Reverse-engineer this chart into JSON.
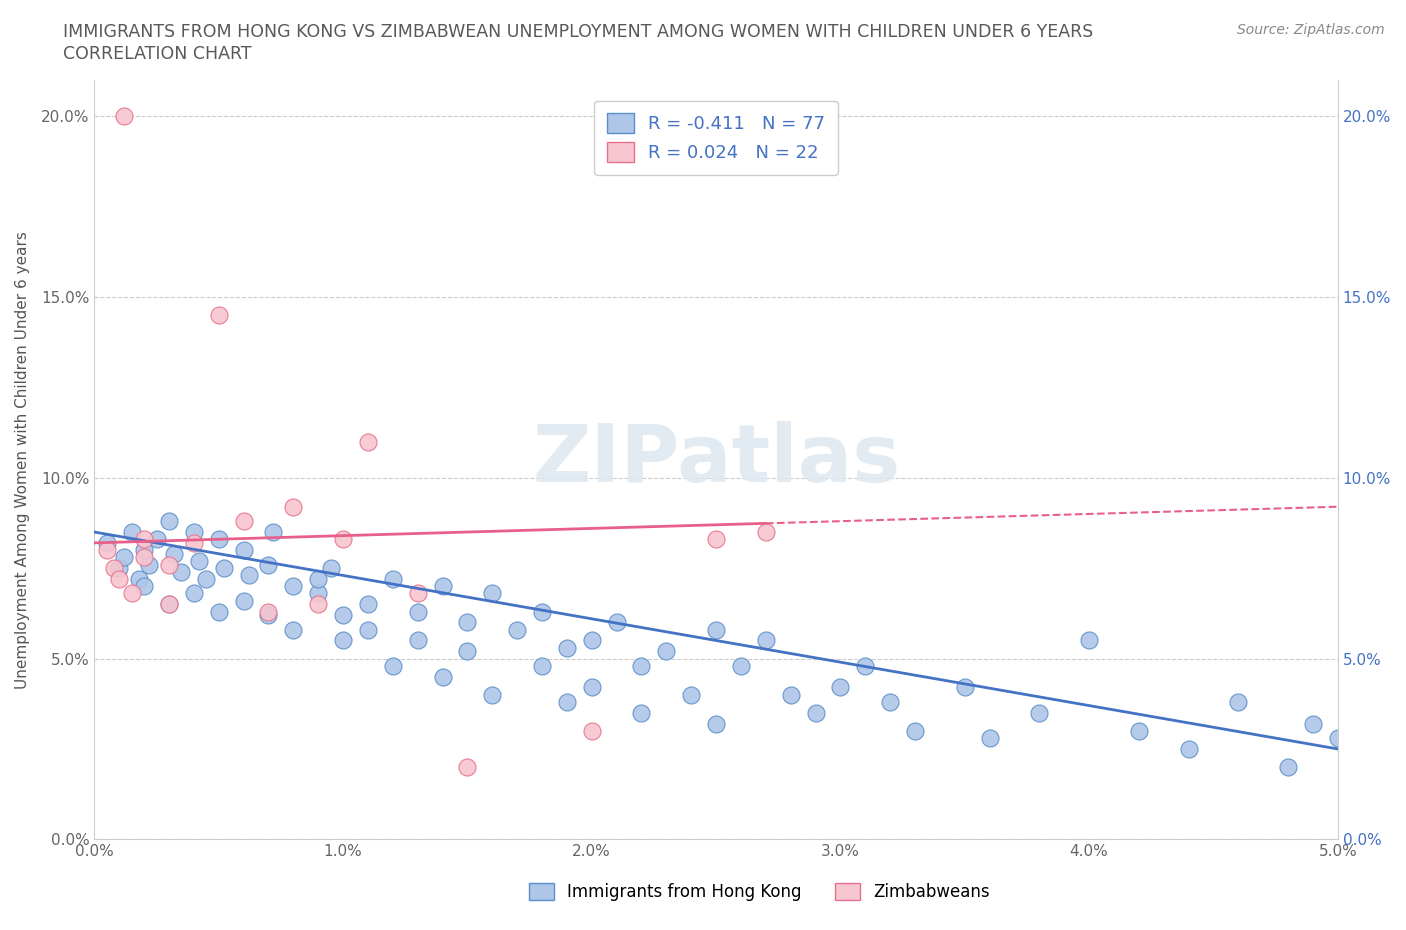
{
  "title1": "IMMIGRANTS FROM HONG KONG VS ZIMBABWEAN UNEMPLOYMENT AMONG WOMEN WITH CHILDREN UNDER 6 YEARS",
  "title2": "CORRELATION CHART",
  "source_text": "Source: ZipAtlas.com",
  "ylabel": "Unemployment Among Women with Children Under 6 years",
  "xlim": [
    0.0,
    0.05
  ],
  "ylim": [
    0.0,
    0.21
  ],
  "x_ticks": [
    0.0,
    0.01,
    0.02,
    0.03,
    0.04,
    0.05
  ],
  "x_tick_labels": [
    "0.0%",
    "1.0%",
    "2.0%",
    "3.0%",
    "4.0%",
    "5.0%"
  ],
  "y_ticks": [
    0.0,
    0.05,
    0.1,
    0.15,
    0.2
  ],
  "y_tick_labels": [
    "0.0%",
    "5.0%",
    "10.0%",
    "15.0%",
    "20.0%"
  ],
  "legend_r1": "R = -0.411   N = 77",
  "legend_r2": "R = 0.024   N = 22",
  "blue_color": "#aec6e8",
  "blue_edge": "#5b8fc9",
  "pink_color": "#f7c5d0",
  "pink_edge": "#e8708a",
  "line_blue": "#4472c4",
  "line_pink": "#e8608a",
  "text_blue": "#4472c4",
  "title_color": "#595959",
  "source_color": "#888888",
  "watermark": "ZIPatlas",
  "blue_scatter_x": [
    0.0005,
    0.001,
    0.0012,
    0.0015,
    0.0018,
    0.002,
    0.002,
    0.0022,
    0.0025,
    0.003,
    0.003,
    0.0032,
    0.0035,
    0.004,
    0.004,
    0.0042,
    0.0045,
    0.005,
    0.005,
    0.0052,
    0.006,
    0.006,
    0.0062,
    0.007,
    0.007,
    0.0072,
    0.008,
    0.008,
    0.009,
    0.009,
    0.0095,
    0.01,
    0.01,
    0.011,
    0.011,
    0.012,
    0.012,
    0.013,
    0.013,
    0.014,
    0.014,
    0.015,
    0.015,
    0.016,
    0.016,
    0.017,
    0.018,
    0.018,
    0.019,
    0.019,
    0.02,
    0.02,
    0.021,
    0.022,
    0.022,
    0.023,
    0.024,
    0.025,
    0.025,
    0.026,
    0.027,
    0.028,
    0.029,
    0.03,
    0.031,
    0.032,
    0.033,
    0.035,
    0.036,
    0.038,
    0.04,
    0.042,
    0.044,
    0.046,
    0.048,
    0.049,
    0.05
  ],
  "blue_scatter_y": [
    0.082,
    0.075,
    0.078,
    0.085,
    0.072,
    0.08,
    0.07,
    0.076,
    0.083,
    0.088,
    0.065,
    0.079,
    0.074,
    0.085,
    0.068,
    0.077,
    0.072,
    0.083,
    0.063,
    0.075,
    0.08,
    0.066,
    0.073,
    0.076,
    0.062,
    0.085,
    0.07,
    0.058,
    0.068,
    0.072,
    0.075,
    0.062,
    0.055,
    0.058,
    0.065,
    0.072,
    0.048,
    0.063,
    0.055,
    0.07,
    0.045,
    0.06,
    0.052,
    0.068,
    0.04,
    0.058,
    0.063,
    0.048,
    0.053,
    0.038,
    0.055,
    0.042,
    0.06,
    0.048,
    0.035,
    0.052,
    0.04,
    0.058,
    0.032,
    0.048,
    0.055,
    0.04,
    0.035,
    0.042,
    0.048,
    0.038,
    0.03,
    0.042,
    0.028,
    0.035,
    0.055,
    0.03,
    0.025,
    0.038,
    0.02,
    0.032,
    0.028
  ],
  "pink_scatter_x": [
    0.0005,
    0.0008,
    0.001,
    0.0012,
    0.0015,
    0.002,
    0.002,
    0.003,
    0.003,
    0.004,
    0.005,
    0.006,
    0.007,
    0.008,
    0.009,
    0.01,
    0.011,
    0.013,
    0.015,
    0.02,
    0.025,
    0.027
  ],
  "pink_scatter_y": [
    0.08,
    0.075,
    0.072,
    0.2,
    0.068,
    0.078,
    0.083,
    0.065,
    0.076,
    0.082,
    0.145,
    0.088,
    0.063,
    0.092,
    0.065,
    0.083,
    0.11,
    0.068,
    0.02,
    0.03,
    0.083,
    0.085
  ],
  "pink_line_solid_end": 0.027,
  "pink_line_dash_end": 0.05
}
